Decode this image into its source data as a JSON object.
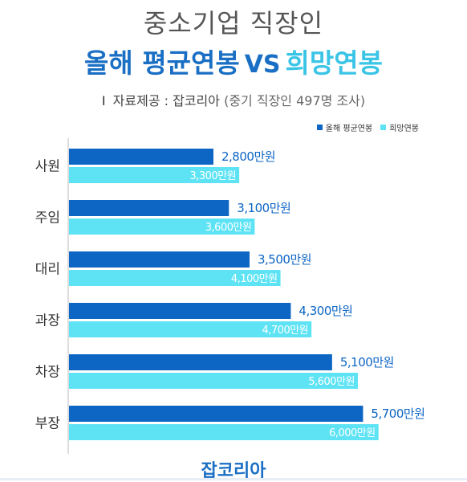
{
  "header": {
    "title_line1": "중소기업 직장인",
    "title_avg": "올해 평균연봉",
    "title_vs": "VS",
    "title_hope": "희망연봉",
    "source_bar": "I",
    "source_label": "자료제공 : 잡코리아",
    "source_note": "(중기 직장인 497명 조사)"
  },
  "legend": {
    "avg_label": "올해 평균연봉",
    "hope_label": "희망연봉"
  },
  "colors": {
    "avg": "#0d65c4",
    "hope": "#5ee3f5",
    "avg_label": "#0d65c4",
    "hope_label": "#ffffff"
  },
  "chart_data": {
    "type": "bar",
    "orientation": "horizontal",
    "categories": [
      "사원",
      "주임",
      "대리",
      "과장",
      "차장",
      "부장"
    ],
    "series": [
      {
        "name": "올해 평균연봉",
        "values": [
          2800,
          3100,
          3500,
          4300,
          5100,
          5700
        ],
        "labels": [
          "2,800만원",
          "3,100만원",
          "3,500만원",
          "4,300만원",
          "5,100만원",
          "5,700만원"
        ]
      },
      {
        "name": "희망연봉",
        "values": [
          3300,
          3600,
          4100,
          4700,
          5600,
          6000
        ],
        "labels": [
          "3,300만원",
          "3,600만원",
          "4,100만원",
          "4,700만원",
          "5,600만원",
          "6,000만원"
        ]
      }
    ],
    "unit": "만원",
    "xlim": [
      0,
      7700
    ],
    "legend_position": "top-right",
    "grid": false
  },
  "footer": {
    "brand": "잡코리아"
  }
}
